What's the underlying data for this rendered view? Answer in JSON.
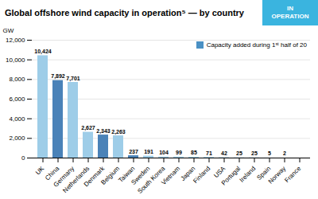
{
  "chart_data": {
    "type": "bar",
    "title": "Global offshore wind capacity in operation⁵ — by country",
    "annotations": [
      "IN",
      "OPERATION"
    ],
    "y_label": "GW",
    "categories": [
      "UK",
      "China",
      "Germany",
      "Netherlands",
      "Denmark",
      "Belgium",
      "Taiwan",
      "Sweden",
      "South Korea",
      "Vietnam",
      "Japan",
      "Finland",
      "USA",
      "Portugal",
      "Ireland",
      "Spain",
      "Norway",
      "France"
    ],
    "values": [
      10424,
      7892,
      7701,
      2627,
      2343,
      2263,
      237,
      191,
      104,
      99,
      85,
      71,
      42,
      25,
      25,
      5,
      2,
      0
    ],
    "value_labels": [
      "10,424",
      "7,892",
      "7,701",
      "2,627",
      "2,343",
      "2,263",
      "237",
      "191",
      "104",
      "99",
      "85",
      "71",
      "42",
      "25",
      "25",
      "5",
      "2",
      null
    ],
    "colors": [
      "#9ecde8",
      "#4a82b8",
      "#9ecde8",
      "#9ecde8",
      "#4a82b8",
      "#9ecde8",
      "#4a82b8",
      "#9ecde8",
      "#9ecde8",
      "#9ecde8",
      "#9ecde8",
      "#9ecde8",
      "#9ecde8",
      "#9ecde8",
      "#9ecde8",
      "#9ecde8",
      "#9ecde8",
      "#9ecde8"
    ],
    "ylim": [
      0,
      12000
    ],
    "yticks": [
      0,
      {
        "value": 2000,
        "label": "2,000"
      },
      {
        "value": 4000,
        "label": "4,000"
      },
      {
        "value": 6000,
        "label": "6,000"
      },
      {
        "value": 8000,
        "label": "8,000"
      },
      {
        "value": 10000,
        "label": "10,000"
      },
      {
        "value": 12000,
        "label": "12,000"
      }
    ],
    "grid": true,
    "data_labels": true,
    "legend": "top-right",
    "legend_labels": [
      "Capacity added during 1ˢᵗ half of 20"
    ],
    "legend_colors": [
      "#4a90c4"
    ]
  }
}
